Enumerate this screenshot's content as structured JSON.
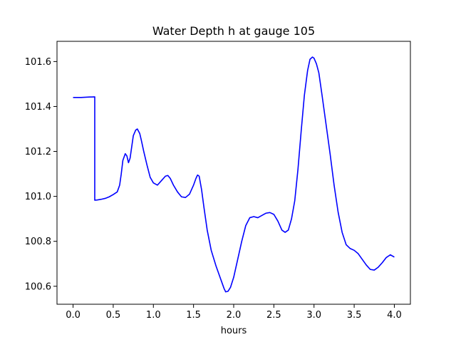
{
  "chart_data": {
    "type": "line",
    "title": "Water Depth h at gauge 105",
    "xlabel": "hours",
    "ylabel": "",
    "xlim": [
      -0.2,
      4.2
    ],
    "ylim": [
      100.52,
      101.69
    ],
    "x_ticks": [
      0.0,
      0.5,
      1.0,
      1.5,
      2.0,
      2.5,
      3.0,
      3.5,
      4.0
    ],
    "x_tick_labels": [
      "0.0",
      "0.5",
      "1.0",
      "1.5",
      "2.0",
      "2.5",
      "3.0",
      "3.5",
      "4.0"
    ],
    "y_ticks": [
      100.6,
      100.8,
      101.0,
      101.2,
      101.4,
      101.6
    ],
    "y_tick_labels": [
      "100.6",
      "100.8",
      "101.0",
      "101.2",
      "101.4",
      "101.6"
    ],
    "grid": false,
    "legend": "none",
    "series": [
      {
        "color": "#0000ff",
        "x": [
          0.0,
          0.1,
          0.2,
          0.27,
          0.27,
          0.3,
          0.35,
          0.4,
          0.45,
          0.5,
          0.55,
          0.58,
          0.6,
          0.62,
          0.65,
          0.67,
          0.69,
          0.71,
          0.73,
          0.75,
          0.78,
          0.8,
          0.83,
          0.85,
          0.88,
          0.92,
          0.96,
          1.0,
          1.05,
          1.1,
          1.15,
          1.18,
          1.21,
          1.25,
          1.3,
          1.35,
          1.4,
          1.45,
          1.5,
          1.53,
          1.55,
          1.57,
          1.6,
          1.63,
          1.67,
          1.72,
          1.78,
          1.84,
          1.88,
          1.9,
          1.93,
          1.96,
          2.0,
          2.05,
          2.1,
          2.15,
          2.2,
          2.25,
          2.3,
          2.35,
          2.4,
          2.45,
          2.5,
          2.55,
          2.6,
          2.64,
          2.68,
          2.72,
          2.76,
          2.8,
          2.84,
          2.88,
          2.92,
          2.95,
          2.98,
          3.0,
          3.03,
          3.06,
          3.1,
          3.15,
          3.2,
          3.25,
          3.3,
          3.35,
          3.4,
          3.45,
          3.5,
          3.55,
          3.6,
          3.65,
          3.7,
          3.75,
          3.8,
          3.85,
          3.9,
          3.95,
          4.0
        ],
        "y": [
          101.44,
          101.44,
          101.442,
          101.443,
          100.983,
          100.984,
          100.987,
          100.991,
          100.998,
          101.008,
          101.02,
          101.05,
          101.1,
          101.16,
          101.19,
          101.18,
          101.15,
          101.17,
          101.22,
          101.27,
          101.295,
          101.3,
          101.28,
          101.25,
          101.2,
          101.14,
          101.085,
          101.06,
          101.05,
          101.07,
          101.09,
          101.093,
          101.08,
          101.05,
          101.02,
          100.998,
          100.995,
          101.01,
          101.05,
          101.08,
          101.095,
          101.09,
          101.03,
          100.95,
          100.85,
          100.76,
          100.69,
          100.63,
          100.59,
          100.575,
          100.578,
          100.595,
          100.64,
          100.72,
          100.8,
          100.87,
          100.905,
          100.91,
          100.905,
          100.915,
          100.925,
          100.928,
          100.92,
          100.89,
          100.85,
          100.84,
          100.85,
          100.9,
          100.98,
          101.12,
          101.29,
          101.45,
          101.56,
          101.61,
          101.62,
          101.615,
          101.59,
          101.55,
          101.45,
          101.32,
          101.19,
          101.05,
          100.93,
          100.84,
          100.785,
          100.768,
          100.76,
          100.745,
          100.72,
          100.695,
          100.675,
          100.672,
          100.685,
          100.705,
          100.728,
          100.74,
          100.73
        ]
      }
    ]
  }
}
